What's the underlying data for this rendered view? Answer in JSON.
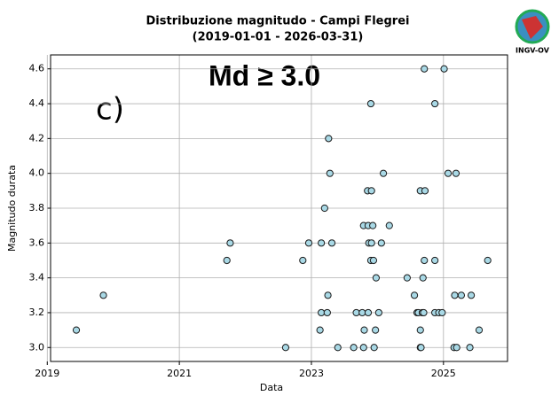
{
  "chart_data": {
    "type": "scatter",
    "title": "Distribuzione magnitudo - Campi Flegrei",
    "subtitle": "(2019-01-01 - 2026-03-31)",
    "x_label": "Data",
    "y_label": "Magnitudo durata",
    "annotations": [
      "c)",
      "Md ≥ 3.0"
    ],
    "logo_text": "INGV-OV",
    "xlim": [
      2019.05,
      2025.97
    ],
    "xticks": [
      2019,
      2021,
      2023,
      2025
    ],
    "ylim": [
      2.92,
      4.68
    ],
    "yticks": [
      {
        "value": 3,
        "label": "3.0"
      },
      3.2,
      3.4,
      3.6,
      3.8,
      {
        "value": 4,
        "label": "4.0"
      },
      4.2,
      4.4,
      4.6
    ],
    "grid": true,
    "color": "#a9d9e6",
    "edgecolor": "#1a1a1a",
    "x": [
      2019.44,
      2019.85,
      2021.72,
      2021.77,
      2022.61,
      2022.87,
      2022.96,
      2023.13,
      2023.15,
      2023.15,
      2023.2,
      2023.24,
      2023.25,
      2023.26,
      2023.28,
      2023.31,
      2023.4,
      2023.64,
      2023.68,
      2023.77,
      2023.79,
      2023.79,
      2023.8,
      2023.85,
      2023.86,
      2023.86,
      2023.87,
      2023.9,
      2023.9,
      2023.91,
      2023.91,
      2023.93,
      2023.94,
      2023.95,
      2023.97,
      2023.98,
      2024.02,
      2024.06,
      2024.09,
      2024.18,
      2024.45,
      2024.56,
      2024.6,
      2024.62,
      2024.65,
      2024.65,
      2024.65,
      2024.66,
      2024.68,
      2024.69,
      2024.7,
      2024.71,
      2024.71,
      2024.72,
      2024.87,
      2024.87,
      2024.87,
      2024.93,
      2024.98,
      2025.01,
      2025.07,
      2025.16,
      2025.17,
      2025.19,
      2025.2,
      2025.27,
      2025.4,
      2025.42,
      2025.54,
      2025.67
    ],
    "values": [
      3.1,
      3.3,
      3.5,
      3.6,
      3.0,
      3.5,
      3.6,
      3.1,
      3.2,
      3.6,
      3.8,
      3.2,
      3.3,
      4.2,
      4.0,
      3.6,
      3.0,
      3.0,
      3.2,
      3.2,
      3.0,
      3.7,
      3.1,
      3.9,
      3.7,
      3.2,
      3.6,
      4.4,
      3.5,
      3.9,
      3.6,
      3.7,
      3.5,
      3.0,
      3.1,
      3.4,
      3.2,
      3.6,
      4.0,
      3.7,
      3.4,
      3.3,
      3.2,
      3.2,
      3.0,
      3.1,
      3.9,
      3.0,
      3.2,
      3.4,
      3.2,
      3.5,
      4.6,
      3.9,
      3.5,
      4.4,
      3.2,
      3.2,
      3.2,
      4.6,
      4.0,
      3.0,
      3.3,
      4.0,
      3.0,
      3.3,
      3.0,
      3.3,
      3.1,
      3.5
    ]
  }
}
